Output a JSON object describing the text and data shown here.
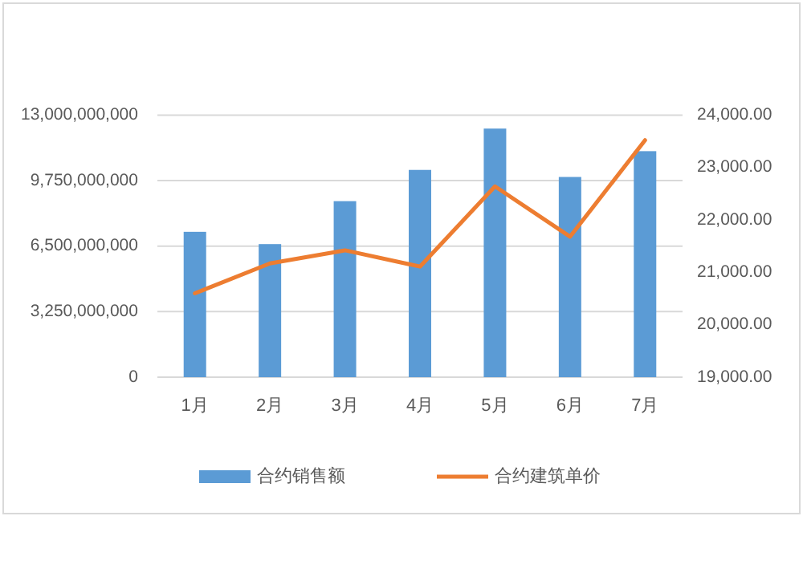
{
  "chart_data": {
    "type": "bar",
    "categories": [
      "1月",
      "2月",
      "3月",
      "4月",
      "5月",
      "6月",
      "7月"
    ],
    "series": [
      {
        "name": "合约销售额",
        "color": "#5b9bd5",
        "values": [
          7210000000,
          6600000000,
          8730000000,
          10280000000,
          12330000000,
          9930000000,
          11210000000
        ]
      },
      {
        "name": "合约建筑单价",
        "type": "line",
        "axis": "y2",
        "color": "#ed7d31",
        "values": [
          20600,
          21170,
          21420,
          21110,
          22640,
          21680,
          23520
        ]
      }
    ],
    "ylim": [
      0,
      13000000000
    ],
    "yticks": [
      {
        "value": 0,
        "label": "0"
      },
      {
        "value": 3250000000,
        "label": "3,250,000,000"
      },
      {
        "value": 6500000000,
        "label": "6,500,000,000"
      },
      {
        "value": 9750000000,
        "label": "9,750,000,000"
      },
      {
        "value": 13000000000,
        "label": "13,000,000,000"
      }
    ],
    "y2lim": [
      19000,
      24000
    ],
    "y2ticks": [
      {
        "value": 19000,
        "label": "19,000.00"
      },
      {
        "value": 20000,
        "label": "20,000.00"
      },
      {
        "value": 21000,
        "label": "21,000.00"
      },
      {
        "value": 22000,
        "label": "22,000.00"
      },
      {
        "value": 23000,
        "label": "23,000.00"
      },
      {
        "value": 24000,
        "label": "24,000.00"
      }
    ],
    "grid": "y",
    "legend": "bottom",
    "marker": "none",
    "line_style": "solid"
  }
}
